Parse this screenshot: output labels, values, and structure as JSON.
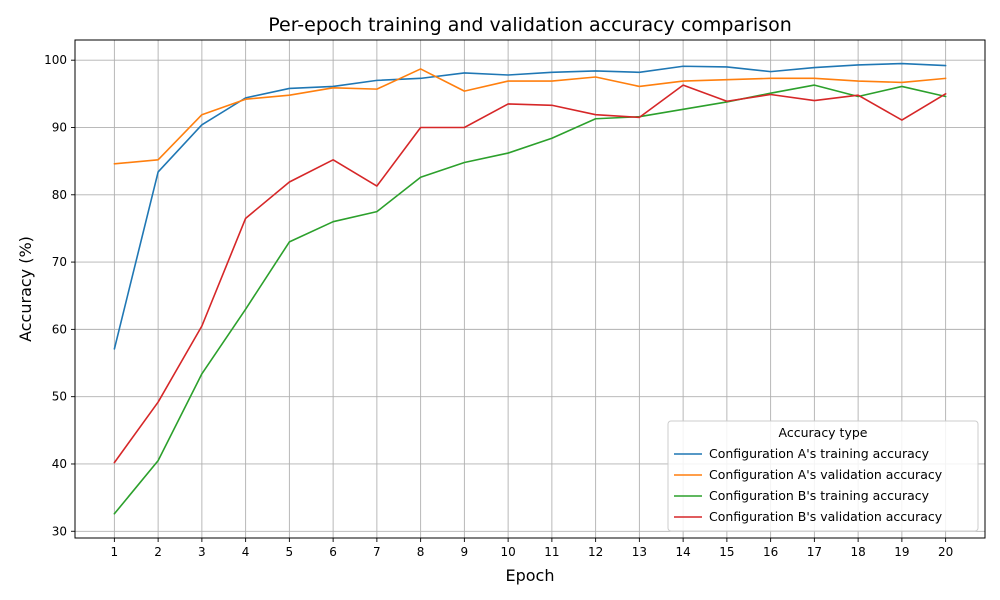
{
  "chart_data": {
    "type": "line",
    "title": "Per-epoch training and validation accuracy comparison",
    "xlabel": "Epoch",
    "ylabel": "Accuracy (%)",
    "x": [
      1,
      2,
      3,
      4,
      5,
      6,
      7,
      8,
      9,
      10,
      11,
      12,
      13,
      14,
      15,
      16,
      17,
      18,
      19,
      20
    ],
    "xlim": [
      0.1,
      20.9
    ],
    "ylim": [
      29,
      103
    ],
    "yticks": [
      30,
      40,
      50,
      60,
      70,
      80,
      90,
      100
    ],
    "grid": true,
    "legend": {
      "title": "Accuracy type",
      "placement": "lower-right"
    },
    "series": [
      {
        "name": "Configuration A's training accuracy",
        "color": "#1f77b4",
        "values": [
          57.1,
          83.4,
          90.4,
          94.4,
          95.8,
          96.1,
          97.0,
          97.3,
          98.1,
          97.8,
          98.2,
          98.4,
          98.2,
          99.1,
          99.0,
          98.3,
          98.9,
          99.3,
          99.5,
          99.2
        ]
      },
      {
        "name": "Configuration A's validation accuracy",
        "color": "#ff7f0e",
        "values": [
          84.6,
          85.2,
          91.9,
          94.2,
          94.8,
          95.9,
          95.7,
          98.7,
          95.4,
          96.9,
          96.9,
          97.5,
          96.1,
          96.9,
          97.1,
          97.3,
          97.3,
          96.9,
          96.7,
          97.3
        ]
      },
      {
        "name": "Configuration B's training accuracy",
        "color": "#2ca02c",
        "values": [
          32.6,
          40.5,
          53.4,
          63.0,
          73.0,
          76.0,
          77.5,
          82.6,
          84.8,
          86.2,
          88.4,
          91.3,
          91.6,
          92.7,
          93.8,
          95.1,
          96.3,
          94.6,
          96.1,
          94.6
        ]
      },
      {
        "name": "Configuration B's validation accuracy",
        "color": "#d62728",
        "values": [
          40.2,
          49.2,
          60.5,
          76.5,
          81.9,
          85.2,
          81.3,
          90.0,
          90.0,
          93.5,
          93.3,
          91.9,
          91.5,
          96.3,
          93.9,
          94.9,
          94.0,
          94.8,
          91.1,
          95.0
        ]
      }
    ]
  }
}
